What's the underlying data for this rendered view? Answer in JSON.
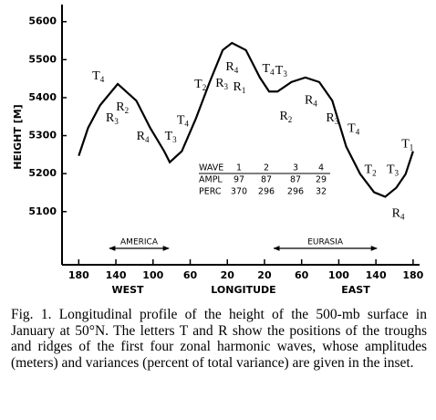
{
  "chart_data": {
    "type": "line",
    "ylabel": "HEIGHT [M]",
    "xlabel": "LONGITUDE",
    "xside_labels": [
      "WEST",
      "EAST"
    ],
    "x": [
      -180,
      -170,
      -157,
      -138,
      -118,
      -103,
      -88,
      -82,
      -69,
      -54,
      -39,
      -25,
      -15,
      0,
      15,
      25,
      34,
      49,
      64,
      79,
      93,
      108,
      123,
      138,
      150,
      162,
      172,
      180
    ],
    "series": [
      {
        "name": "500-mb height",
        "color": "#000000",
        "values": [
          5247,
          5320,
          5380,
          5436,
          5392,
          5320,
          5259,
          5230,
          5259,
          5344,
          5441,
          5525,
          5544,
          5525,
          5453,
          5416,
          5416,
          5441,
          5453,
          5441,
          5392,
          5271,
          5199,
          5151,
          5139,
          5163,
          5199,
          5259
        ]
      }
    ],
    "xlim": [
      -198,
      187
    ],
    "ylim": [
      4960,
      5645
    ],
    "xticks": [
      {
        "value": -180,
        "label": "180"
      },
      {
        "value": -140,
        "label": "140"
      },
      {
        "value": -100,
        "label": "100"
      },
      {
        "value": -60,
        "label": "60"
      },
      {
        "value": -20,
        "label": "20"
      },
      20,
      60,
      100,
      140,
      180
    ],
    "yticks": [
      5100,
      5200,
      5300,
      5400,
      5500,
      5600
    ],
    "grid": false,
    "regions": [
      {
        "label": "AMERICA",
        "from": -147,
        "to": -83
      },
      {
        "label": "EURASIA",
        "from": 30,
        "to": 141
      }
    ],
    "annotations": [
      {
        "text": "T",
        "sub": "4",
        "x": -159,
        "y": 5455
      },
      {
        "text": "R",
        "sub": "3",
        "x": -144,
        "y": 5344
      },
      {
        "text": "R",
        "sub": "2",
        "x": -133,
        "y": 5373
      },
      {
        "text": "R",
        "sub": "4",
        "x": -111,
        "y": 5296
      },
      {
        "text": "T",
        "sub": "3",
        "x": -81,
        "y": 5296
      },
      {
        "text": "T",
        "sub": "4",
        "x": -68,
        "y": 5339
      },
      {
        "text": "T",
        "sub": "2",
        "x": -49,
        "y": 5433
      },
      {
        "text": "R",
        "sub": "3",
        "x": -26,
        "y": 5436
      },
      {
        "text": "R",
        "sub": "4",
        "x": -15,
        "y": 5479
      },
      {
        "text": "R",
        "sub": "1",
        "x": -7,
        "y": 5426
      },
      {
        "text": "T",
        "sub": "4",
        "x": 24,
        "y": 5474
      },
      {
        "text": "T",
        "sub": "3",
        "x": 38,
        "y": 5470
      },
      {
        "text": "R",
        "sub": "2",
        "x": 43,
        "y": 5349
      },
      {
        "text": "R",
        "sub": "4",
        "x": 70,
        "y": 5392
      },
      {
        "text": "R",
        "sub": "3",
        "x": 93,
        "y": 5344
      },
      {
        "text": "T",
        "sub": "4",
        "x": 116,
        "y": 5317
      },
      {
        "text": "T",
        "sub": "2",
        "x": 134,
        "y": 5209
      },
      {
        "text": "T",
        "sub": "3",
        "x": 158,
        "y": 5209
      },
      {
        "text": "R",
        "sub": "4",
        "x": 164,
        "y": 5093
      },
      {
        "text": "T",
        "sub": "1",
        "x": 174,
        "y": 5276
      }
    ],
    "inset": {
      "rows": [
        [
          "WAVE",
          "1",
          "2",
          "3",
          "4"
        ],
        [
          "AMPL",
          "97",
          "87",
          "87",
          "29"
        ],
        [
          "PERC",
          "370",
          "296",
          "296",
          "32"
        ]
      ]
    }
  },
  "caption": "Fig. 1. Longitudinal profile of the height of the 500-mb surface in January at 50°N. The letters T and R show the positions of the troughs and ridges of the first four zonal harmonic waves, whose amplitudes (meters) and variances (percent of total variance) are given in the inset."
}
